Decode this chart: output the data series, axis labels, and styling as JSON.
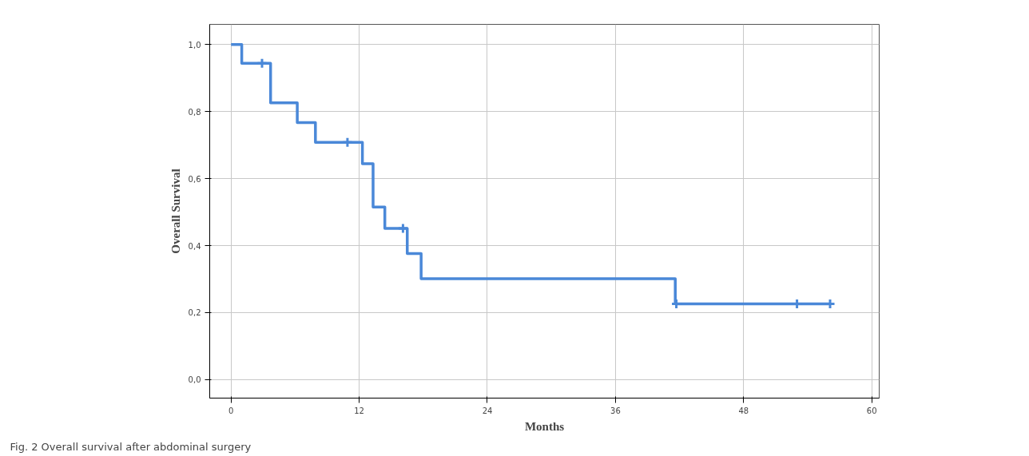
{
  "chart_data": {
    "type": "step",
    "xlabel": "Months",
    "ylabel": "Overall Survival",
    "xlim": [
      -2,
      60.7
    ],
    "ylim": [
      -0.055,
      1.06
    ],
    "xticks": [
      0,
      12,
      24,
      36,
      48,
      60
    ],
    "yticks": [
      {
        "value": 0,
        "label": "0,0"
      },
      {
        "value": 0.2,
        "label": "0,2"
      },
      {
        "value": 0.4,
        "label": "0,4"
      },
      {
        "value": 0.6,
        "label": "0,6"
      },
      {
        "value": 0.8,
        "label": "0,8"
      },
      {
        "value": 1.0,
        "label": "1,0"
      }
    ],
    "grid": true,
    "series": [
      {
        "color": "#4a88d8",
        "line_style": "solid",
        "x": [
          0,
          1.0,
          3.7,
          3.7,
          6.2,
          7.9,
          12.3,
          13.3,
          13.3,
          14.4,
          16.5,
          17.8,
          41.6,
          56.1
        ],
        "values": [
          1.0,
          0.944,
          0.885,
          0.826,
          0.767,
          0.708,
          0.644,
          0.58,
          0.515,
          0.451,
          0.376,
          0.301,
          0.226,
          0.226
        ]
      },
      {
        "type": "scatter",
        "color": "#4a88d8",
        "marker": "cross",
        "x": [
          2.9,
          10.9,
          16.1,
          41.7,
          53.0,
          56.1
        ],
        "values": [
          0.944,
          0.708,
          0.451,
          0.226,
          0.226,
          0.226
        ]
      }
    ],
    "annotations": [
      "Fig. 2 Overall survival after abdominal surgery"
    ]
  }
}
